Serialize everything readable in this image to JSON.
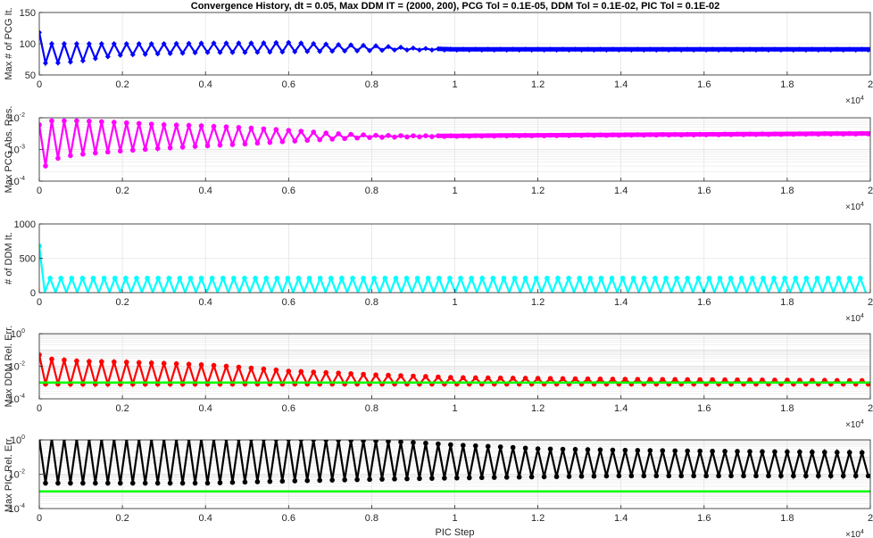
{
  "title": "Convergence History, dt = 0.05, Max DDM IT = (2000, 200), PCG Tol = 0.1E-05, DDM Tol = 0.1E-02, PIC Tol = 0.1E-02",
  "x_multiplier": {
    "base": "×10",
    "exp": "4"
  },
  "colors": {
    "pcg_iter": "#0000ff",
    "pcg_res": "#ff00ff",
    "ddm_iter": "#00ffff",
    "ddm_err": "#ff0000",
    "pic_err": "#000000",
    "tolerance": "#00ff00",
    "grid": "#dcdcdc",
    "axis": "#262626"
  },
  "chart_data": [
    {
      "type": "line",
      "ylabel": "Max # of PCG It.",
      "xlabel": "",
      "scale": "linear",
      "xlim": [
        0,
        20000
      ],
      "ylim": [
        50,
        150
      ],
      "yticks": [
        "50",
        "100",
        "150"
      ],
      "xticks": [
        "0",
        "0.2",
        "0.4",
        "0.6",
        "0.8",
        "1",
        "1.2",
        "1.4",
        "1.6",
        "1.8",
        "2"
      ],
      "grid": true,
      "series": [
        {
          "color": "blue",
          "x": [
            0,
            100,
            200,
            600,
            1000,
            1500,
            2000,
            3000,
            4000,
            5000,
            6000,
            7000,
            8000,
            8500,
            9000,
            9500,
            10000,
            12000,
            14000,
            16000,
            18000,
            20000
          ],
          "y_upper": [
            118,
            100,
            100,
            100,
            100,
            100,
            100,
            100,
            101,
            101,
            102,
            99,
            97,
            95,
            93,
            92,
            91,
            91,
            91,
            91,
            91,
            91
          ],
          "y_lower": [
            68,
            70,
            68,
            70,
            72,
            78,
            82,
            84,
            86,
            86,
            87,
            88,
            89,
            90,
            90,
            90,
            90,
            90,
            90,
            90,
            90,
            90
          ]
        }
      ]
    },
    {
      "type": "line",
      "ylabel": "Max PCG Abs. Res.",
      "xlabel": "",
      "scale": "log",
      "xlim": [
        0,
        20000
      ],
      "ylim": [
        0.0001,
        0.01
      ],
      "ytick_labels": [
        {
          "base": "10",
          "exp": "-4"
        },
        {
          "base": "10",
          "exp": "-3"
        },
        {
          "base": "10",
          "exp": "-2"
        }
      ],
      "xticks": [
        "0",
        "0.2",
        "0.4",
        "0.6",
        "0.8",
        "1",
        "1.2",
        "1.4",
        "1.6",
        "1.8",
        "2"
      ],
      "grid": true,
      "series": [
        {
          "color": "magenta",
          "x": [
            0,
            100,
            200,
            600,
            1000,
            1500,
            2000,
            3000,
            4000,
            5000,
            6000,
            7000,
            8000,
            9000,
            10000,
            12000,
            14000,
            16000,
            18000,
            20000
          ],
          "y_upper": [
            0.006,
            0.008,
            0.008,
            0.008,
            0.008,
            0.0075,
            0.007,
            0.006,
            0.0055,
            0.0048,
            0.004,
            0.0032,
            0.0028,
            0.0027,
            0.0027,
            0.0028,
            0.0029,
            0.003,
            0.0031,
            0.0032
          ],
          "y_lower": [
            0.0003,
            0.0002,
            0.0004,
            0.0006,
            0.0007,
            0.0008,
            0.0009,
            0.0011,
            0.0013,
            0.0015,
            0.0018,
            0.0021,
            0.0024,
            0.0025,
            0.0026,
            0.0027,
            0.0028,
            0.0029,
            0.003,
            0.0031
          ]
        }
      ]
    },
    {
      "type": "line",
      "ylabel": "# of DDM It.",
      "xlabel": "",
      "scale": "linear",
      "xlim": [
        0,
        20000
      ],
      "ylim": [
        0,
        1000
      ],
      "yticks": [
        "0",
        "500",
        "1000"
      ],
      "xticks": [
        "0",
        "0.2",
        "0.4",
        "0.6",
        "0.8",
        "1",
        "1.2",
        "1.4",
        "1.6",
        "1.8",
        "2"
      ],
      "grid": true,
      "series": [
        {
          "color": "cyan",
          "x": [
            0,
            50,
            100,
            2000,
            5000,
            10000,
            15000,
            20000
          ],
          "y_upper": [
            680,
            220,
            210,
            210,
            210,
            210,
            210,
            210
          ],
          "y_lower": [
            5,
            5,
            5,
            5,
            5,
            5,
            5,
            5
          ]
        }
      ]
    },
    {
      "type": "line",
      "ylabel": "Max DDM Rel. Err.",
      "xlabel": "",
      "scale": "log",
      "xlim": [
        0,
        20000
      ],
      "ylim": [
        0.0001,
        1
      ],
      "ytick_labels": [
        {
          "base": "10",
          "exp": "-4"
        },
        {
          "base": "10",
          "exp": "-2"
        },
        {
          "base": "10",
          "exp": "0"
        }
      ],
      "xticks": [
        "0",
        "0.2",
        "0.4",
        "0.6",
        "0.8",
        "1",
        "1.2",
        "1.4",
        "1.6",
        "1.8",
        "2"
      ],
      "grid": true,
      "tolerance": 0.001,
      "series": [
        {
          "color": "red",
          "x": [
            0,
            100,
            500,
            1000,
            2000,
            3000,
            4000,
            5000,
            6000,
            7000,
            8000,
            9000,
            10000,
            12000,
            14000,
            16000,
            18000,
            20000
          ],
          "y_upper": [
            0.05,
            0.03,
            0.025,
            0.02,
            0.018,
            0.015,
            0.012,
            0.008,
            0.005,
            0.004,
            0.003,
            0.0025,
            0.002,
            0.0018,
            0.0016,
            0.0015,
            0.0014,
            0.0013
          ],
          "y_lower": [
            0.0009,
            0.0008,
            0.0008,
            0.0008,
            0.0008,
            0.0008,
            0.0008,
            0.0008,
            0.0008,
            0.0008,
            0.0008,
            0.0008,
            0.0008,
            0.0008,
            0.0008,
            0.0008,
            0.0008,
            0.0008
          ]
        }
      ]
    },
    {
      "type": "line",
      "ylabel": "Max PIC Rel. Err.",
      "xlabel": "PIC Step",
      "scale": "log",
      "xlim": [
        0,
        20000
      ],
      "ylim": [
        0.0001,
        1
      ],
      "ytick_labels": [
        {
          "base": "10",
          "exp": "-4"
        },
        {
          "base": "10",
          "exp": "-2"
        },
        {
          "base": "10",
          "exp": "0"
        }
      ],
      "xticks": [
        "0",
        "0.2",
        "0.4",
        "0.6",
        "0.8",
        "1",
        "1.2",
        "1.4",
        "1.6",
        "1.8",
        "2"
      ],
      "grid": true,
      "tolerance": 0.001,
      "series": [
        {
          "color": "black",
          "x": [
            0,
            100,
            500,
            1000,
            2000,
            4000,
            6000,
            8000,
            10000,
            12000,
            14000,
            16000,
            18000,
            20000
          ],
          "y_upper": [
            1.2,
            1.3,
            1.2,
            1.2,
            1.2,
            1.2,
            1.1,
            0.9,
            0.5,
            0.3,
            0.25,
            0.22,
            0.2,
            0.18
          ],
          "y_lower": [
            0.003,
            0.003,
            0.003,
            0.003,
            0.003,
            0.003,
            0.004,
            0.005,
            0.006,
            0.007,
            0.008,
            0.008,
            0.008,
            0.008
          ]
        }
      ]
    }
  ]
}
